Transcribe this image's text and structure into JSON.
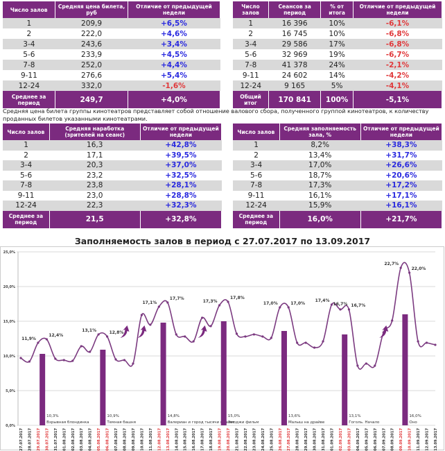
{
  "table_price": {
    "headers": [
      "Число залов",
      "Средняя цена билета, руб",
      "Отличие от предыдущей недели"
    ],
    "rows": [
      [
        "1",
        "209,9",
        "+6,5%"
      ],
      [
        "2",
        "222,0",
        "+4,6%"
      ],
      [
        "3-4",
        "243,6",
        "+3,4%"
      ],
      [
        "5-6",
        "233,9",
        "+4,5%"
      ],
      [
        "7-8",
        "252,0",
        "+4,4%"
      ],
      [
        "9-11",
        "276,6",
        "+5,4%"
      ],
      [
        "12-24",
        "332,0",
        "-1,6%"
      ]
    ],
    "footer": [
      "Среднее за период",
      "249,7",
      "+4,0%"
    ]
  },
  "table_sessions": {
    "headers": [
      "Число залов",
      "Сеансов за период",
      "% от итога",
      "Отличие от предыдущей недели"
    ],
    "rows": [
      [
        "1",
        "16 396",
        "10%",
        "-6,1%"
      ],
      [
        "2",
        "16 745",
        "10%",
        "-6,8%"
      ],
      [
        "3-4",
        "29 586",
        "17%",
        "-6,8%"
      ],
      [
        "5-6",
        "32 969",
        "19%",
        "-6,7%"
      ],
      [
        "7-8",
        "41 378",
        "24%",
        "-2,1%"
      ],
      [
        "9-11",
        "24 602",
        "14%",
        "-4,2%"
      ],
      [
        "12-24",
        "9 165",
        "5%",
        "-4,1%"
      ]
    ],
    "footer": [
      "Общий итог",
      "170 841",
      "100%",
      "-5,1%"
    ]
  },
  "note": "Средняя цена билета группы кинотеатров представляет собой отношение валового сбора, полученного группой кинотеатров, к количеству проданных билетов указанными кинотеатрами.",
  "table_attendance": {
    "headers": [
      "Число залов",
      "Средняя наработка (зрителей на сеанс)",
      "Отличие от предыдущей недели"
    ],
    "rows": [
      [
        "1",
        "16,3",
        "+42,8%"
      ],
      [
        "2",
        "17,1",
        "+39,5%"
      ],
      [
        "3-4",
        "20,3",
        "+37,0%"
      ],
      [
        "5-6",
        "23,2",
        "+32,5%"
      ],
      [
        "7-8",
        "23,8",
        "+28,1%"
      ],
      [
        "9-11",
        "23,0",
        "+28,8%"
      ],
      [
        "12-24",
        "22,3",
        "+32,3%"
      ]
    ],
    "footer": [
      "Среднее за период",
      "21,5",
      "+32,8%"
    ]
  },
  "table_occupancy": {
    "headers": [
      "Число залов",
      "Средняя заполняемость зала, %",
      "Отличие от предыдущей недели"
    ],
    "rows": [
      [
        "1",
        "8,2%",
        "+38,3%"
      ],
      [
        "2",
        "13,4%",
        "+31,7%"
      ],
      [
        "3-4",
        "17,0%",
        "+26,6%"
      ],
      [
        "5-6",
        "18,7%",
        "+20,6%"
      ],
      [
        "7-8",
        "17,3%",
        "+17,2%"
      ],
      [
        "9-11",
        "16,1%",
        "+17,1%"
      ],
      [
        "12-24",
        "15,9%",
        "+16,1%"
      ]
    ],
    "footer": [
      "Среднее за период",
      "16,0%",
      "+21,7%"
    ]
  },
  "colors": {
    "header": "#7b2a7f",
    "positive": "#2a2adf",
    "negative": "#e0383a",
    "line": "#7b3a80",
    "bar": "#7b2a7f",
    "weekend_date": "#e0383a"
  },
  "chart_data": {
    "type": "line+bar",
    "title": "Заполняемость залов в период с 27.07.2017 по 13.09.2017",
    "ylim": [
      0,
      25
    ],
    "yticks": [
      "0,0%",
      "5,0%",
      "10,0%",
      "15,0%",
      "20,0%",
      "25,0%"
    ],
    "grid": true,
    "x": [
      "27.07.2017",
      "28.07.2017",
      "29.07.2017",
      "30.07.2017",
      "31.07.2017",
      "01.08.2017",
      "02.08.2017",
      "03.08.2017",
      "04.08.2017",
      "05.08.2017",
      "06.08.2017",
      "07.08.2017",
      "08.08.2017",
      "09.08.2017",
      "10.08.2017",
      "11.08.2017",
      "12.08.2017",
      "13.08.2017",
      "14.08.2017",
      "15.08.2017",
      "16.08.2017",
      "17.08.2017",
      "18.08.2017",
      "19.08.2017",
      "20.08.2017",
      "21.08.2017",
      "22.08.2017",
      "23.08.2017",
      "24.08.2017",
      "25.08.2017",
      "26.08.2017",
      "27.08.2017",
      "28.08.2017",
      "29.08.2017",
      "30.08.2017",
      "31.08.2017",
      "01.09.2017",
      "02.09.2017",
      "03.09.2017",
      "04.09.2017",
      "05.09.2017",
      "06.09.2017",
      "07.09.2017",
      "08.09.2017",
      "09.09.2017",
      "10.09.2017",
      "11.09.2017",
      "12.09.2017",
      "13.09.2017"
    ],
    "weekend": [
      "29.07.2017",
      "30.07.2017",
      "05.08.2017",
      "06.08.2017",
      "12.08.2017",
      "13.08.2017",
      "19.08.2017",
      "20.08.2017",
      "26.08.2017",
      "27.08.2017",
      "02.09.2017",
      "03.09.2017",
      "09.09.2017",
      "10.09.2017"
    ],
    "line": [
      9.7,
      9.2,
      11.9,
      12.4,
      9.6,
      9.4,
      9.3,
      11.4,
      10.6,
      13.1,
      12.8,
      9.5,
      9.4,
      8.9,
      15.9,
      14.5,
      17.1,
      17.7,
      13.1,
      12.8,
      12.1,
      15.5,
      14.3,
      17.3,
      17.8,
      13.2,
      12.8,
      13.1,
      12.8,
      12.6,
      17.0,
      17.0,
      11.9,
      11.9,
      11.2,
      12.1,
      17.4,
      16.7,
      16.7,
      8.6,
      8.9,
      8.6,
      13.4,
      15.1,
      22.7,
      22.0,
      12.1,
      11.9,
      11.6
    ],
    "point_labels": [
      {
        "date": "29.07.2017",
        "text": "11,9%"
      },
      {
        "date": "30.07.2017",
        "text": "12,4%"
      },
      {
        "date": "05.08.2017",
        "text": "13,1%"
      },
      {
        "date": "06.08.2017",
        "text": "12,8%"
      },
      {
        "date": "12.08.2017",
        "text": "17,1%"
      },
      {
        "date": "13.08.2017",
        "text": "17,7%"
      },
      {
        "date": "19.08.2017",
        "text": "17,3%"
      },
      {
        "date": "20.08.2017",
        "text": "17,8%"
      },
      {
        "date": "26.08.2017",
        "text": "17,0%"
      },
      {
        "date": "27.08.2017",
        "text": "17,0%"
      },
      {
        "date": "01.09.2017",
        "text": "17,4%"
      },
      {
        "date": "02.09.2017",
        "text": "16,7%"
      },
      {
        "date": "03.09.2017",
        "text": "16,7%"
      },
      {
        "date": "09.09.2017",
        "text": "22,7%"
      },
      {
        "date": "10.09.2017",
        "text": "22,0%"
      }
    ],
    "bars": [
      {
        "date": "30.07.2017",
        "value": 10.3,
        "label": "10,3%",
        "film": "Взрывная блондинка"
      },
      {
        "date": "06.08.2017",
        "value": 10.9,
        "label": "10,9%",
        "film": "Темная башня"
      },
      {
        "date": "13.08.2017",
        "value": 14.8,
        "label": "14,8%",
        "film": "Валериан и город тысячи планет"
      },
      {
        "date": "20.08.2017",
        "value": 15.0,
        "label": "15,0%",
        "film": "Эмоджи фильм"
      },
      {
        "date": "27.08.2017",
        "value": 13.6,
        "label": "13,6%",
        "film": "Малыш на драйве"
      },
      {
        "date": "03.09.2017",
        "value": 13.1,
        "label": "13,1%",
        "film": "Гоголь. Начало"
      },
      {
        "date": "10.09.2017",
        "value": 16.0,
        "label": "16,0%",
        "film": "Оно"
      }
    ],
    "arrow_icons": [
      "08.08.2017",
      "10.08.2017",
      "17.08.2017",
      "07.09.2017"
    ]
  }
}
